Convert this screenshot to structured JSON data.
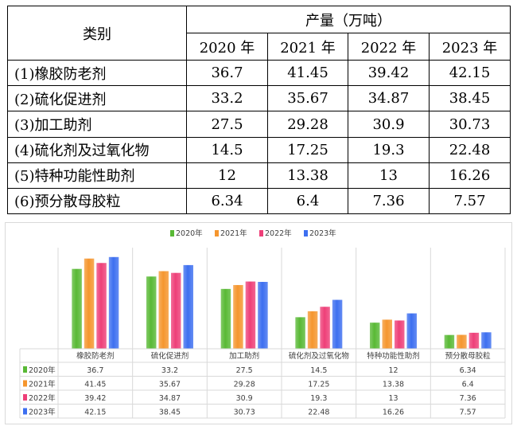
{
  "table": {
    "category_header": "类别",
    "group_header": "产量（万吨）",
    "years": [
      "2020 年",
      "2021 年",
      "2022 年",
      "2023 年"
    ],
    "rows": [
      {
        "label": "(1)橡胶防老剂",
        "values": [
          "36.7",
          "41.45",
          "39.42",
          "42.15"
        ]
      },
      {
        "label": "(2)硫化促进剂",
        "values": [
          "33.2",
          "35.67",
          "34.87",
          "38.45"
        ]
      },
      {
        "label": "(3)加工助剂",
        "values": [
          "27.5",
          "29.28",
          "30.9",
          "30.73"
        ]
      },
      {
        "label": "(4)硫化剂及过氧化物",
        "values": [
          "14.5",
          "17.25",
          "19.3",
          "22.48"
        ]
      },
      {
        "label": "(5)特种功能性助剂",
        "values": [
          "12",
          "13.38",
          "13",
          "16.26"
        ]
      },
      {
        "label": "(6)预分散母胶粒",
        "values": [
          "6.34",
          "6.4",
          "7.36",
          "7.57"
        ]
      }
    ]
  },
  "chart_data": {
    "type": "bar",
    "categories": [
      "橡胶防老剂",
      "硫化促进剂",
      "加工助剂",
      "硫化剂及过氧化物",
      "特种功能性助剂",
      "预分散母胶粒"
    ],
    "series": [
      {
        "name": "2020年",
        "color": "#59b935",
        "values": [
          36.7,
          33.2,
          27.5,
          14.5,
          12,
          6.34
        ]
      },
      {
        "name": "2021年",
        "color": "#f5962e",
        "values": [
          41.45,
          35.67,
          29.28,
          17.25,
          13.38,
          6.4
        ]
      },
      {
        "name": "2022年",
        "color": "#ee3f78",
        "values": [
          39.42,
          34.87,
          30.9,
          19.3,
          13,
          7.36
        ]
      },
      {
        "name": "2023年",
        "color": "#3d6ff0",
        "values": [
          42.15,
          38.45,
          30.73,
          22.48,
          16.26,
          7.57
        ]
      }
    ],
    "ylim": [
      0,
      45
    ],
    "legend_position": "top",
    "grid": "vertical category separators",
    "data_table_below": true
  }
}
